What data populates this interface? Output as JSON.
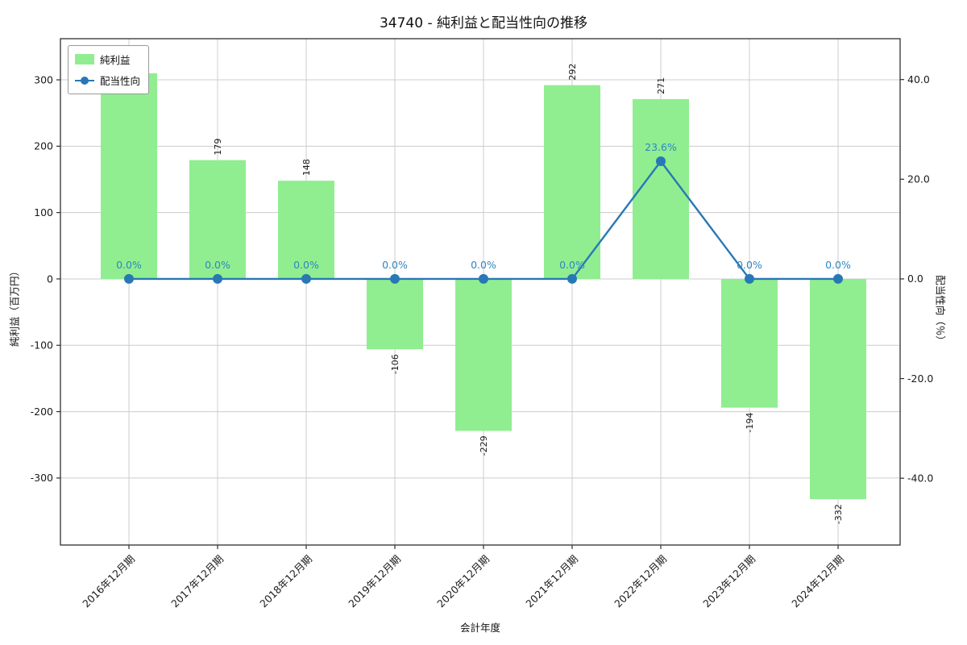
{
  "title": "34740 - 純利益と配当性向の推移",
  "chart_data": {
    "type": "combo",
    "categories": [
      "2016年12月期",
      "2017年12月期",
      "2018年12月期",
      "2019年12月期",
      "2020年12月期",
      "2021年12月期",
      "2022年12月期",
      "2023年12月期",
      "2024年12月期"
    ],
    "series": [
      {
        "name": "純利益",
        "type": "bar",
        "axis": "left",
        "values": [
          310,
          179,
          148,
          -106,
          -229,
          292,
          271,
          -194,
          -332
        ],
        "labels": [
          null,
          "179",
          "148",
          "-106",
          "-229",
          "292",
          "271",
          "-194",
          "-332"
        ]
      },
      {
        "name": "配当性向",
        "type": "line",
        "axis": "right",
        "values": [
          0.0,
          0.0,
          0.0,
          0.0,
          0.0,
          0.0,
          23.6,
          0.0,
          0.0
        ],
        "labels": [
          "0.0%",
          "0.0%",
          "0.0%",
          "0.0%",
          "0.0%",
          "0.0%",
          "23.6%",
          "0.0%",
          "0.0%"
        ]
      }
    ],
    "xlabel": "会計年度",
    "ylabel_left": "純利益（百万円）",
    "ylabel_right": "配当性向（％）",
    "ytick_labels_left": [
      "300",
      "200",
      "100",
      "0",
      "-100",
      "-200",
      "-300"
    ],
    "ytick_labels_right": [
      "40.0",
      "20.0",
      "0.0",
      "-20.0",
      "-40.0"
    ],
    "ylim_left": [
      -401,
      362
    ],
    "ylim_right": [
      -53.4,
      48.2
    ],
    "grid": true,
    "legend_position": "upper left",
    "colors": {
      "bar": "#90ee90",
      "line": "#2878b5",
      "point_label": "#2e86c1",
      "grid": "#cccccc",
      "axis": "#2f2f2f",
      "text": "#1a1a1a"
    }
  }
}
